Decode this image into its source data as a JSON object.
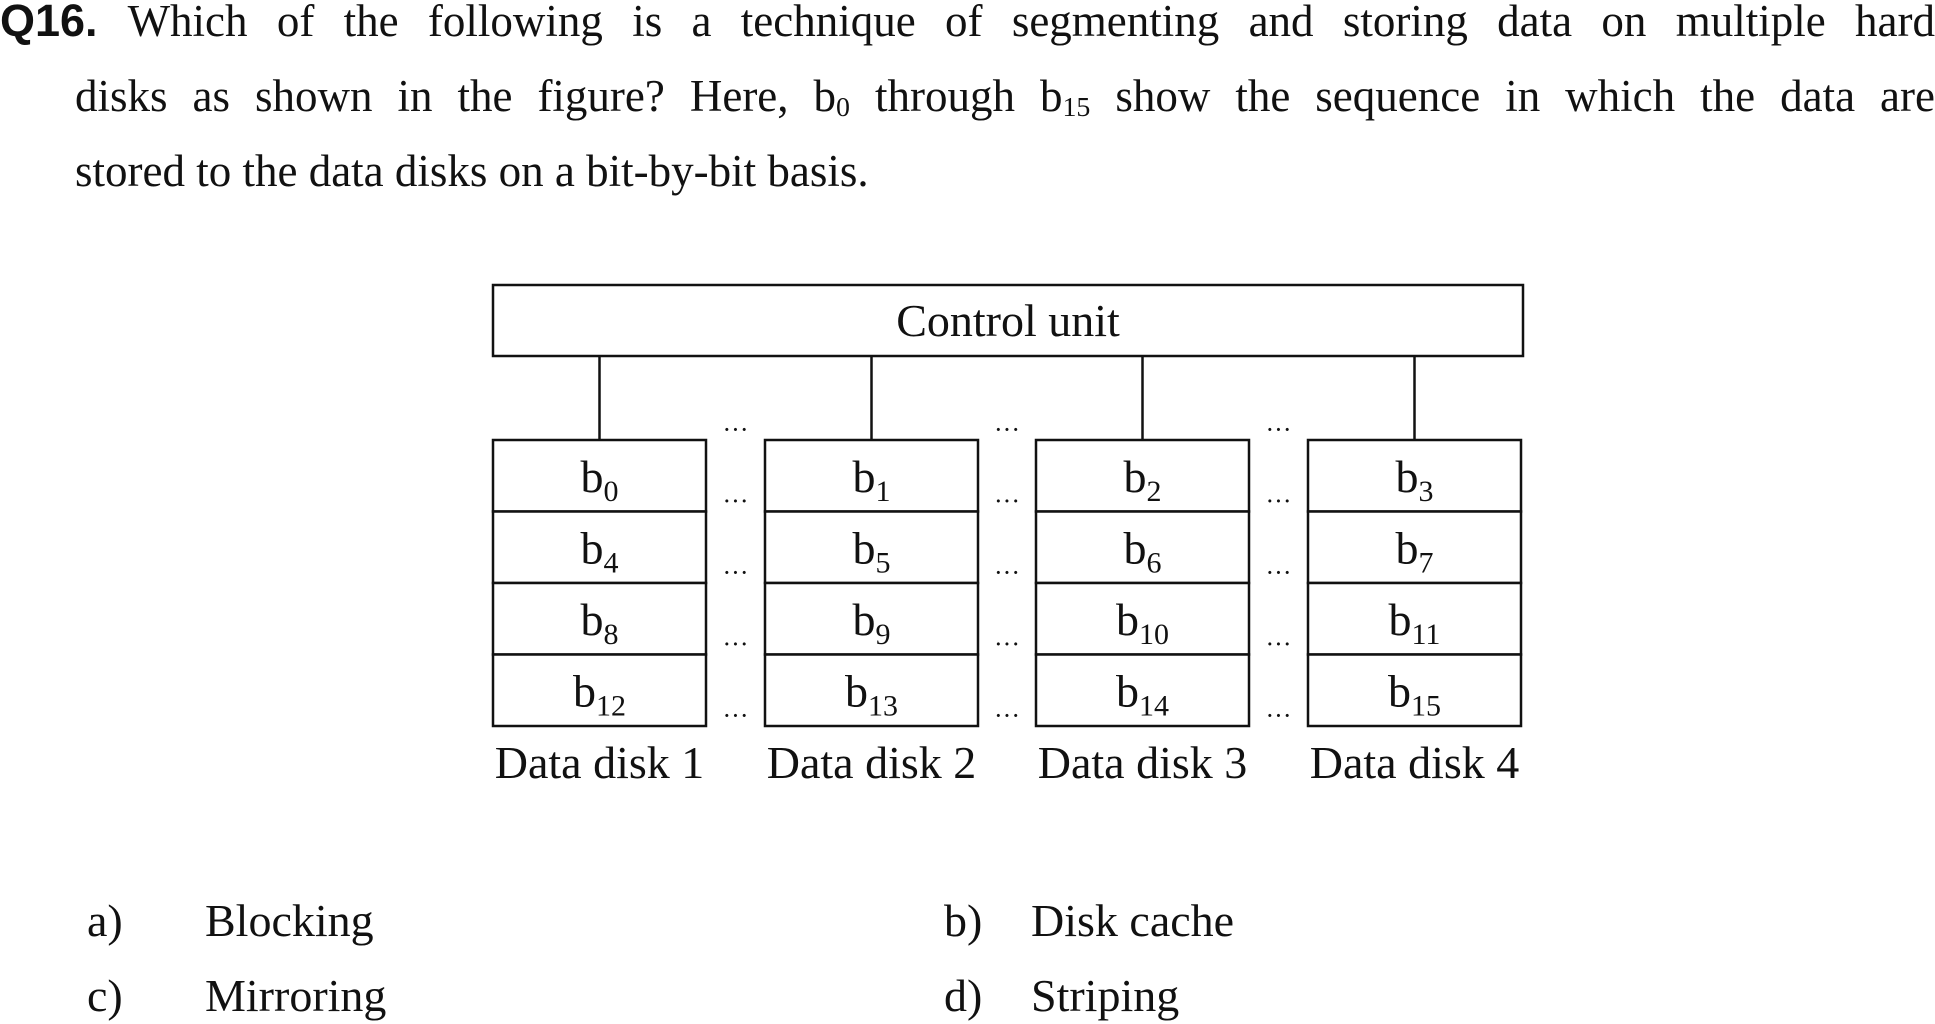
{
  "question": {
    "number": "Q16.",
    "line1": "Which of the following is a technique of segmenting and storing data on multiple hard",
    "line2_pre": "disks as shown in the figure? Here, b",
    "line2_sub1": "0",
    "line2_mid": " through b",
    "line2_sub2": "15",
    "line2_post": " show the sequence in which the data are",
    "line3": "stored to the data disks on a bit-by-bit basis."
  },
  "diagram": {
    "control_unit_label": "Control unit",
    "disks": [
      {
        "label": "Data disk 1",
        "cells": [
          {
            "base": "b",
            "sub": "0"
          },
          {
            "base": "b",
            "sub": "4"
          },
          {
            "base": "b",
            "sub": "8"
          },
          {
            "base": "b",
            "sub": "12"
          }
        ]
      },
      {
        "label": "Data disk 2",
        "cells": [
          {
            "base": "b",
            "sub": "1"
          },
          {
            "base": "b",
            "sub": "5"
          },
          {
            "base": "b",
            "sub": "9"
          },
          {
            "base": "b",
            "sub": "13"
          }
        ]
      },
      {
        "label": "Data disk 3",
        "cells": [
          {
            "base": "b",
            "sub": "2"
          },
          {
            "base": "b",
            "sub": "6"
          },
          {
            "base": "b",
            "sub": "10"
          },
          {
            "base": "b",
            "sub": "14"
          }
        ]
      },
      {
        "label": "Data disk 4",
        "cells": [
          {
            "base": "b",
            "sub": "3"
          },
          {
            "base": "b",
            "sub": "7"
          },
          {
            "base": "b",
            "sub": "11"
          },
          {
            "base": "b",
            "sub": "15"
          }
        ]
      }
    ],
    "separator_glyph": "···"
  },
  "options": [
    {
      "letter": "a)",
      "text": "Blocking"
    },
    {
      "letter": "b)",
      "text": "Disk cache"
    },
    {
      "letter": "c)",
      "text": "Mirroring"
    },
    {
      "letter": "d)",
      "text": "Striping"
    }
  ]
}
